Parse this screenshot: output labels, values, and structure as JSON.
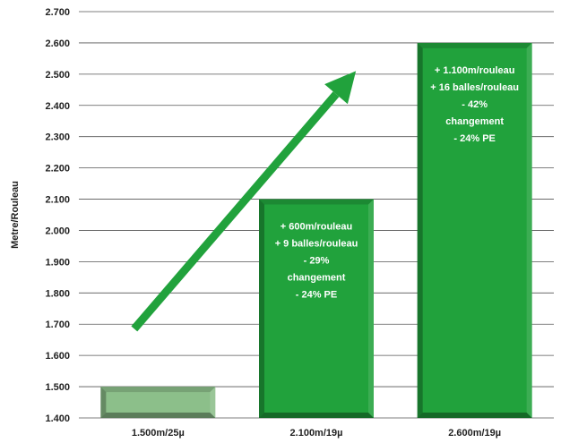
{
  "chart_data": {
    "type": "bar",
    "categories": [
      "1.500m/25µ",
      "2.100m/19µ",
      "2.600m/19µ"
    ],
    "values": [
      1500,
      2100,
      2600
    ],
    "ylabel": "Metre/Rouleau",
    "xlabel": "",
    "ylim": [
      1400,
      2700
    ],
    "yticks": [
      "1.400",
      "1.500",
      "1.600",
      "1.700",
      "1.800",
      "1.900",
      "2.000",
      "2.100",
      "2.200",
      "2.300",
      "2.400",
      "2.500",
      "2.600",
      "2.700"
    ],
    "grid": true,
    "bar_labels": [
      [],
      [
        "+ 600m/rouleau",
        "+ 9 balles/rouleau",
        "- 29%",
        "changement",
        "- 24% PE"
      ],
      [
        "+ 1.100m/rouleau",
        "+ 16 balles/rouleau",
        "- 42%",
        "changement",
        "- 24% PE"
      ]
    ],
    "bar_colors": [
      "#8cbf8a",
      "#21a23c",
      "#21a23c"
    ],
    "arrow": {
      "from": [
        0.35,
        1685
      ],
      "to": [
        1.75,
        2510
      ],
      "color": "#21a23c"
    }
  }
}
